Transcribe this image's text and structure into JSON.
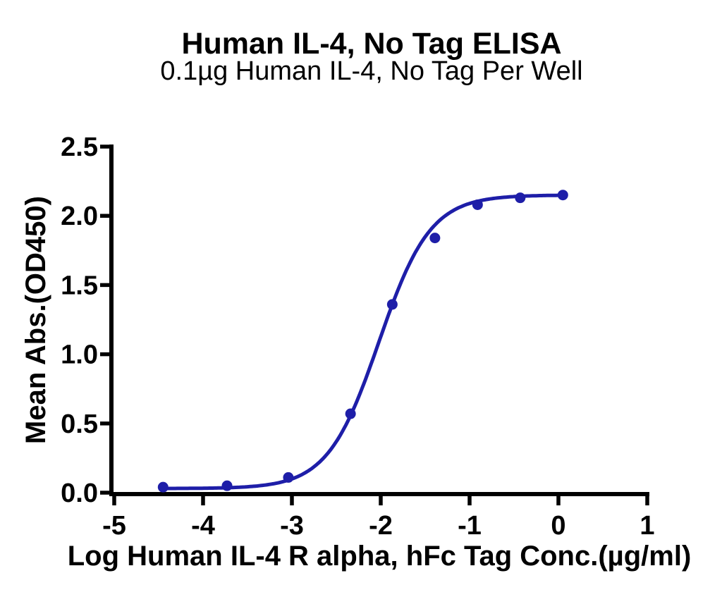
{
  "chart_data": {
    "type": "scatter",
    "title": "Human IL-4, No Tag ELISA",
    "subtitle": "0.1µg Human IL-4, No Tag Per Well",
    "xlabel": "Log Human IL-4 R alpha, hFc Tag Conc.(µg/ml)",
    "ylabel": "Mean Abs.(OD450)",
    "series": [
      {
        "x_log_conc": [
          -4.45,
          -3.73,
          -3.04,
          -2.34,
          -1.87,
          -1.39,
          -0.91,
          -0.43,
          0.05
        ],
        "y_od450": [
          0.04,
          0.05,
          0.11,
          0.57,
          1.36,
          1.84,
          2.08,
          2.13,
          2.15
        ],
        "color": "#1e1ea8",
        "marker": "circle"
      }
    ],
    "fit_curve": {
      "model": "4PL",
      "bottom": 0.03,
      "top": 2.15,
      "log_ec50": -2.02,
      "hill_slope": 1.5
    },
    "xlim": [
      -5.05,
      1.05
    ],
    "ylim": [
      0.0,
      2.5
    ],
    "xticks": [
      -5,
      -4,
      -3,
      -2,
      -1,
      0,
      1
    ],
    "xtick_labels": [
      "-5",
      "-4",
      "-3",
      "-2",
      "-1",
      "0",
      "1"
    ],
    "yticks": [
      0.0,
      0.5,
      1.0,
      1.5,
      2.0,
      2.5
    ],
    "ytick_labels": [
      "0.0",
      "0.5",
      "1.0",
      "1.5",
      "2.0",
      "2.5"
    ],
    "grid": false,
    "legend": "none",
    "axis_color": "#000000",
    "background_color": "#ffffff"
  }
}
